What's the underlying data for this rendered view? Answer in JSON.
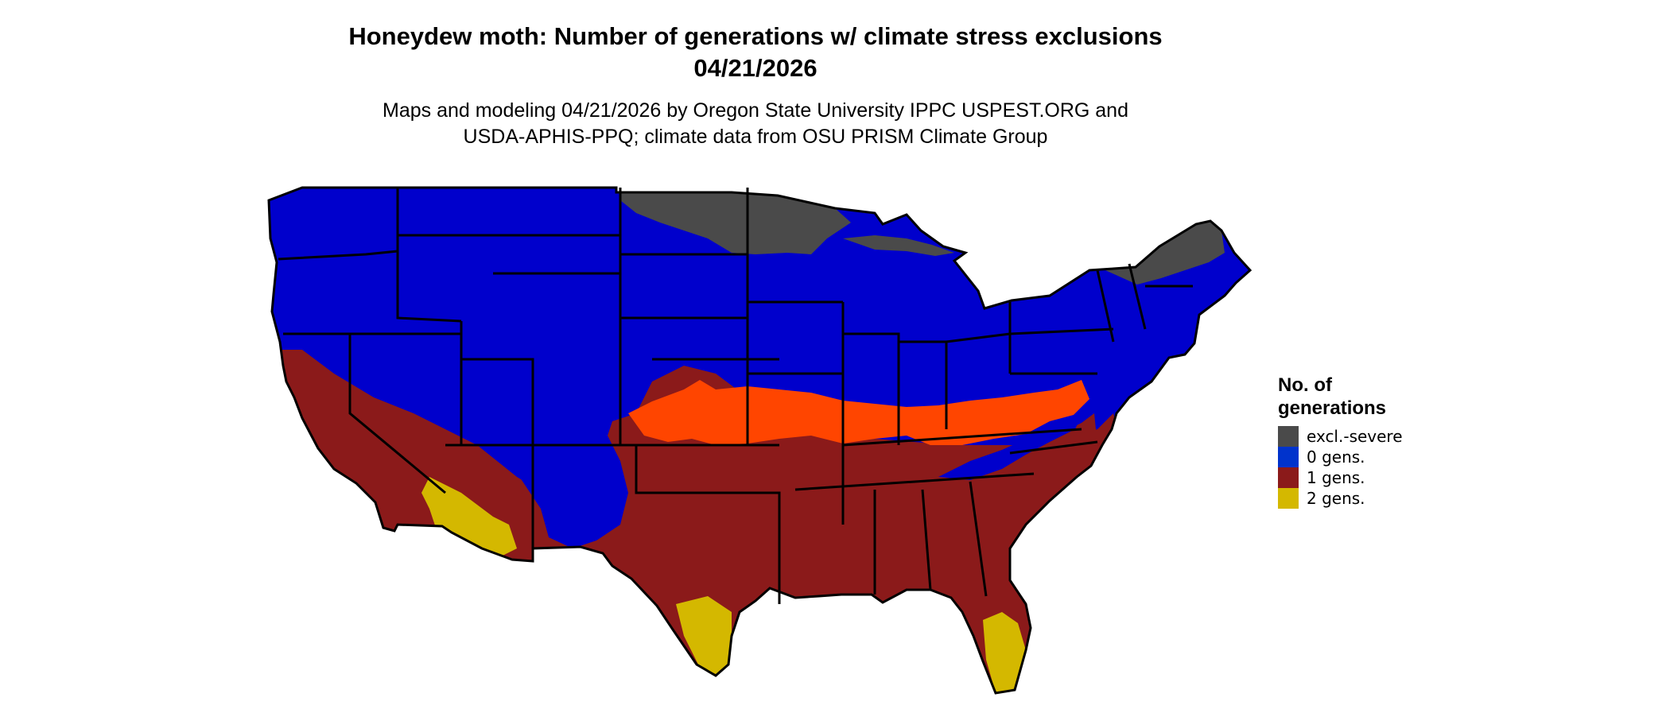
{
  "title_line1": "Honeydew moth: Number of generations w/ climate stress exclusions",
  "title_line2": "04/21/2026",
  "subtitle_line1": "Maps and modeling 04/21/2026 by Oregon State University IPPC USPEST.ORG and",
  "subtitle_line2": "USDA-APHIS-PPQ; climate data from OSU PRISM Climate Group",
  "legend": {
    "title_line1": "No. of",
    "title_line2": "generations",
    "items": [
      {
        "label": "excl.-severe",
        "color": "#4a4a4a"
      },
      {
        "label": "0 gens.",
        "color": "#0033cc"
      },
      {
        "label": "1 gens.",
        "color": "#8b1a1a"
      },
      {
        "label": "2 gens.",
        "color": "#d4b800"
      }
    ]
  },
  "colors": {
    "excluded": "#4a4a4a",
    "zero": "#0000cc",
    "one": "#8b1a1a",
    "one_transition": "#ff4500",
    "two": "#d4b800",
    "border": "#000000"
  }
}
